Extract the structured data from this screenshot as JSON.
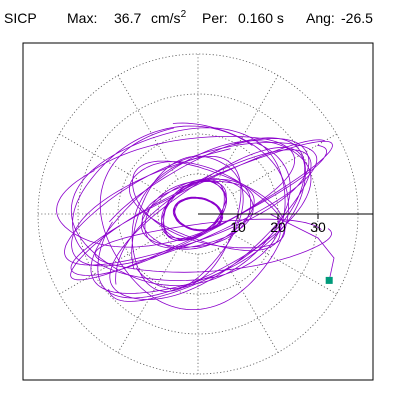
{
  "header": {
    "station": "SICP",
    "max_label": "Max:",
    "max_value": "36.7",
    "max_unit": "cm/s",
    "max_unit_exp": "2",
    "per_label": "Per:",
    "per_value": "0.160 s",
    "ang_label": "Ang:",
    "ang_value": "-26.5"
  },
  "chart_data": {
    "type": "polar-orbit",
    "max_amplitude": 36.7,
    "period_s": 0.16,
    "angle_deg": -26.5,
    "radial_ticks": [
      10,
      20,
      30
    ],
    "radial_tick_labels": [
      "10",
      "20",
      "30"
    ],
    "range_max": 40,
    "angular_grid_step_deg": 30,
    "grid": true,
    "trace_color": "#8b00cc",
    "end_marker": {
      "x": 32.8,
      "y": -16.6,
      "color": "#009a7a"
    },
    "trace_loops": [
      {
        "cx": 0,
        "cy": 1,
        "a": 36,
        "b": 6,
        "rot": 26.5,
        "turns": 2,
        "phase": 0.2
      },
      {
        "cx": -2,
        "cy": 3,
        "a": 33,
        "b": 10,
        "rot": 22,
        "turns": 2,
        "phase": 1.1
      },
      {
        "cx": 1,
        "cy": -1,
        "a": 30,
        "b": 14,
        "rot": 30,
        "turns": 2,
        "phase": 2.3
      },
      {
        "cx": -4,
        "cy": 2,
        "a": 27,
        "b": 19,
        "rot": 10,
        "turns": 2,
        "phase": 0.7
      },
      {
        "cx": 3,
        "cy": -3,
        "a": 29,
        "b": 11,
        "rot": 35,
        "turns": 2,
        "phase": 3.0
      },
      {
        "cx": -1,
        "cy": 0,
        "a": 23,
        "b": 23,
        "rot": 0,
        "turns": 1,
        "phase": 1.8
      },
      {
        "cx": 2,
        "cy": 2,
        "a": 20,
        "b": 9,
        "rot": -20,
        "turns": 2,
        "phase": 0.4
      },
      {
        "cx": -3,
        "cy": -2,
        "a": 18,
        "b": 12,
        "rot": 60,
        "turns": 2,
        "phase": 2.7
      },
      {
        "cx": 0,
        "cy": 0,
        "a": 14,
        "b": 8,
        "rot": 15,
        "turns": 3,
        "phase": 1.5
      },
      {
        "cx": -1,
        "cy": 1,
        "a": 9,
        "b": 6,
        "rot": 40,
        "turns": 4,
        "phase": 0.9
      },
      {
        "cx": 0,
        "cy": 0,
        "a": 6,
        "b": 4,
        "rot": -10,
        "turns": 5,
        "phase": 2.0
      },
      {
        "cx": 4,
        "cy": -8,
        "a": 29,
        "b": 6,
        "rot": 5,
        "turns": 1,
        "phase": 0.3
      },
      {
        "cx": -6,
        "cy": 6,
        "a": 30,
        "b": 12,
        "rot": 15,
        "turns": 1,
        "phase": 2.2
      }
    ]
  }
}
